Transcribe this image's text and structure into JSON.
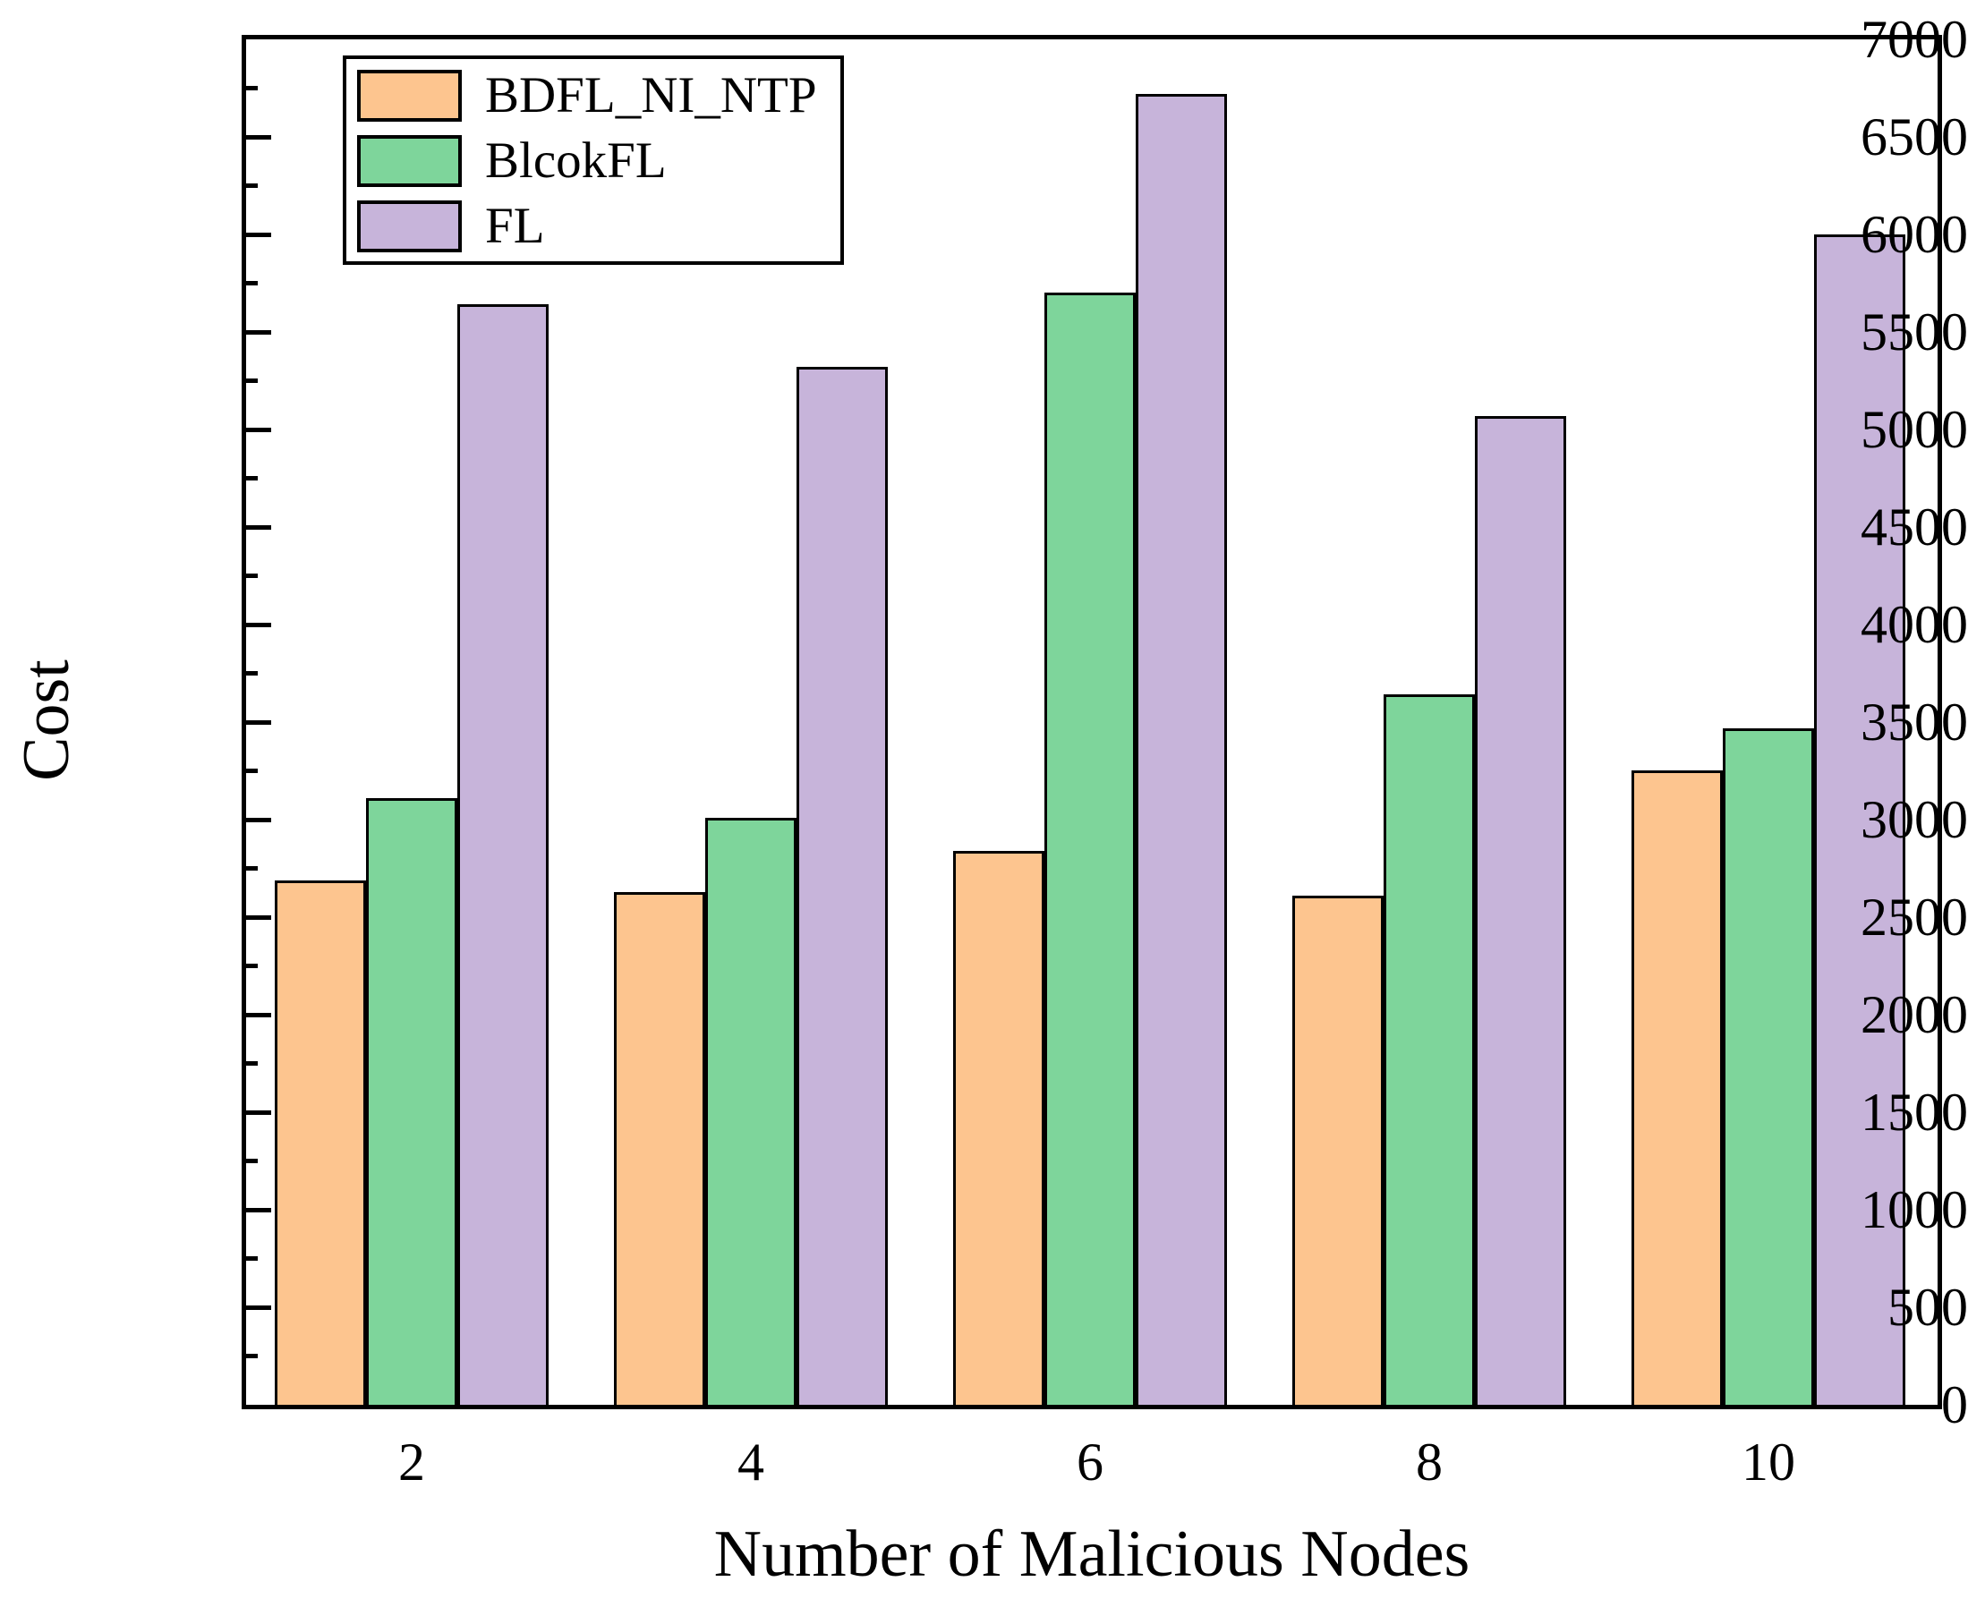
{
  "chart_data": {
    "type": "bar",
    "xlabel": "Number of Malicious Nodes",
    "ylabel": "Cost",
    "categories": [
      "2",
      "4",
      "6",
      "8",
      "10"
    ],
    "series": [
      {
        "name": "BDFL_NI_NTP",
        "color": "#FDC58F",
        "values": [
          2690,
          2630,
          2840,
          2610,
          3250
        ]
      },
      {
        "name": "BlcokFL",
        "color": "#7ED59B",
        "values": [
          3110,
          3010,
          5700,
          3640,
          3470
        ]
      },
      {
        "name": "FL",
        "color": "#C7B4DA",
        "values": [
          5640,
          5320,
          6720,
          5070,
          6000
        ]
      }
    ],
    "ylim": [
      0,
      7000
    ],
    "ytick_step_major": 500,
    "ytick_step_minor": 250,
    "ytick_labels": [
      "0",
      "500",
      "1000",
      "1500",
      "2000",
      "2500",
      "3000",
      "3500",
      "4000",
      "4500",
      "5000",
      "5500",
      "6000",
      "6500",
      "7000"
    ],
    "grid": false,
    "legend_position": "upper-left",
    "bar_border_color": "#000000",
    "axis_color": "#000000"
  }
}
